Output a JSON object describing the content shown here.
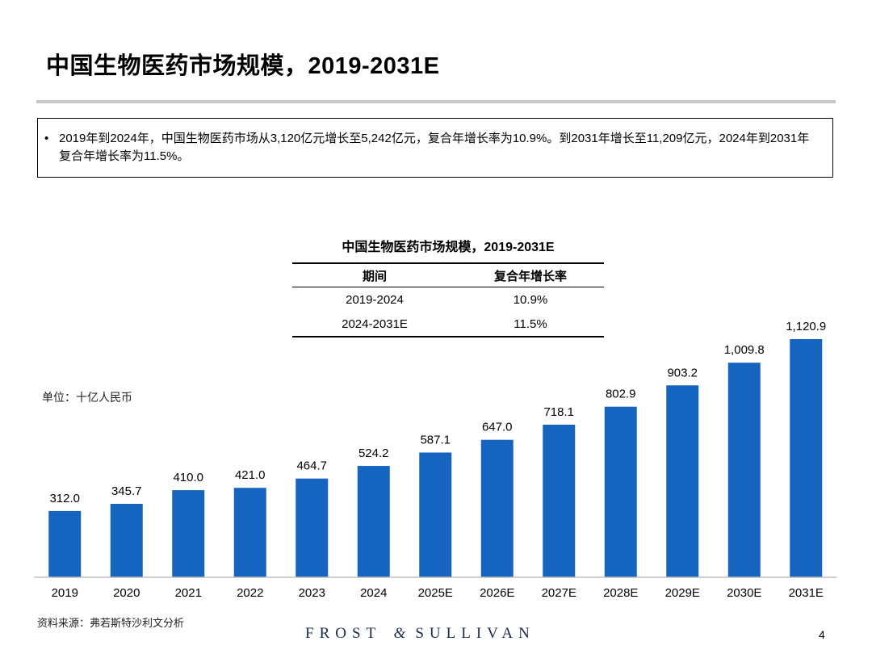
{
  "header": {
    "title": "中国生物医药市场规模，2019-2031E"
  },
  "summary": {
    "bullet": "•",
    "text": "2019年到2024年，中国生物医药市场从3,120亿元增长至5,242亿元，复合年增长率为10.9%。到2031年增长至11,209亿元，2024年到2031年复合年增长率为11.5%。"
  },
  "cagr_table": {
    "title": "中国生物医药市场规模，2019-2031E",
    "headers": [
      "期间",
      "复合年增长率"
    ],
    "rows": [
      [
        "2019-2024",
        "10.9%"
      ],
      [
        "2024-2031E",
        "11.5%"
      ]
    ]
  },
  "unit_label": "单位：十亿人民币",
  "chart_data": {
    "type": "bar",
    "title": "",
    "xlabel": "",
    "ylabel": "",
    "unit": "单位：十亿人民币",
    "categories": [
      "2019",
      "2020",
      "2021",
      "2022",
      "2023",
      "2024",
      "2025E",
      "2026E",
      "2027E",
      "2028E",
      "2029E",
      "2030E",
      "2031E"
    ],
    "values": [
      312.0,
      345.7,
      410.0,
      421.0,
      464.7,
      524.2,
      587.1,
      647.0,
      718.1,
      802.9,
      903.2,
      1009.8,
      1120.9
    ],
    "labels": [
      "312.0",
      "345.7",
      "410.0",
      "421.0",
      "464.7",
      "524.2",
      "587.1",
      "647.0",
      "718.1",
      "802.9",
      "903.2",
      "1,009.8",
      "1,120.9"
    ],
    "ylim": [
      0,
      1120.9
    ],
    "grid": false,
    "legend": "none",
    "bar_color": "#1565c0"
  },
  "footer": {
    "source": "资料来源：弗若斯特沙利文分析",
    "brand_left": "FROST",
    "brand_amp": "&",
    "brand_right": "SULLIVAN",
    "page_number": "4"
  }
}
